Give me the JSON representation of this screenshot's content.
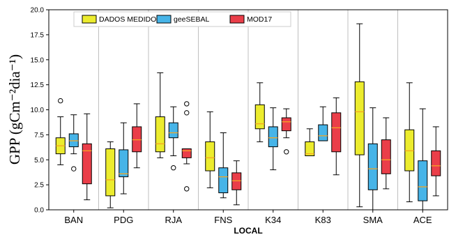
{
  "chart_data": {
    "type": "boxplot",
    "xlabel": "LOCAL",
    "ylabel": "GPP (gCm⁻²dia⁻¹)",
    "ylim": [
      0,
      20
    ],
    "yticks": [
      "0.0",
      "2.5",
      "5.0",
      "7.5",
      "10.0",
      "12.5",
      "15.0",
      "17.5",
      "20.0"
    ],
    "ytick_values": [
      0,
      2.5,
      5,
      7.5,
      10,
      12.5,
      15,
      17.5,
      20
    ],
    "categories": [
      "BAN",
      "PDG",
      "RJA",
      "FNS",
      "K34",
      "K83",
      "SMA",
      "ACE"
    ],
    "legend_position": "top-left",
    "grid": false,
    "series": [
      {
        "name": "DADOS MEDIDOS",
        "color": "#ecec2e",
        "boxes": [
          {
            "whislo": 4.5,
            "q1": 5.6,
            "med": 6.4,
            "q3": 7.2,
            "whishi": 9.3,
            "fliers": [
              10.9
            ]
          },
          {
            "whislo": 0.2,
            "q1": 1.4,
            "med": 3.0,
            "q3": 6.1,
            "whishi": 6.8,
            "fliers": []
          },
          {
            "whislo": 5.2,
            "q1": 5.8,
            "med": 6.6,
            "q3": 9.3,
            "whishi": 13.7,
            "fliers": []
          },
          {
            "whislo": 2.2,
            "q1": 3.9,
            "med": 5.2,
            "q3": 6.8,
            "whishi": 9.8,
            "fliers": []
          },
          {
            "whislo": 6.8,
            "q1": 8.1,
            "med": 8.6,
            "q3": 10.5,
            "whishi": 12.7,
            "fliers": []
          },
          {
            "whislo": 5.4,
            "q1": 5.4,
            "med": 5.6,
            "q3": 6.8,
            "whishi": 8.1,
            "fliers": []
          },
          {
            "whislo": 0.3,
            "q1": 5.5,
            "med": 9.8,
            "q3": 12.8,
            "whishi": 18.6,
            "fliers": []
          },
          {
            "whislo": 0.8,
            "q1": 3.9,
            "med": 5.9,
            "q3": 8.0,
            "whishi": 12.7,
            "fliers": []
          }
        ]
      },
      {
        "name": "geeSEBAL",
        "color": "#46b4e8",
        "boxes": [
          {
            "whislo": 5.6,
            "q1": 6.3,
            "med": 6.9,
            "q3": 7.6,
            "whishi": 9.5,
            "fliers": [
              4.1
            ]
          },
          {
            "whislo": 1.6,
            "q1": 3.3,
            "med": 3.6,
            "q3": 6.0,
            "whishi": 8.7,
            "fliers": []
          },
          {
            "whislo": 5.4,
            "q1": 7.2,
            "med": 7.7,
            "q3": 8.7,
            "whishi": 10.3,
            "fliers": [
              4.2
            ]
          },
          {
            "whislo": 1.2,
            "q1": 1.7,
            "med": 3.3,
            "q3": 4.2,
            "whishi": 7.7,
            "fliers": []
          },
          {
            "whislo": 4.0,
            "q1": 6.3,
            "med": 7.2,
            "q3": 8.3,
            "whishi": 10.2,
            "fliers": []
          },
          {
            "whislo": 6.9,
            "q1": 6.9,
            "med": 7.4,
            "q3": 8.5,
            "whishi": 10.3,
            "fliers": []
          },
          {
            "whislo": 0.0,
            "q1": 2.0,
            "med": 4.1,
            "q3": 6.6,
            "whishi": 10.2,
            "fliers": []
          },
          {
            "whislo": 0.0,
            "q1": 0.9,
            "med": 2.3,
            "q3": 4.9,
            "whishi": 10.1,
            "fliers": []
          }
        ]
      },
      {
        "name": "MOD17",
        "color": "#ea3e49",
        "boxes": [
          {
            "whislo": 1.0,
            "q1": 2.6,
            "med": 5.9,
            "q3": 6.6,
            "whishi": 9.6,
            "fliers": []
          },
          {
            "whislo": 4.2,
            "q1": 5.8,
            "med": 7.0,
            "q3": 8.3,
            "whishi": 10.6,
            "fliers": []
          },
          {
            "whislo": 4.6,
            "q1": 5.2,
            "med": 5.9,
            "q3": 6.1,
            "whishi": 6.1,
            "fliers": [
              10.6,
              9.7,
              2.1
            ]
          },
          {
            "whislo": 0.5,
            "q1": 2.0,
            "med": 2.9,
            "q3": 3.7,
            "whishi": 4.9,
            "fliers": []
          },
          {
            "whislo": 7.2,
            "q1": 7.9,
            "med": 8.8,
            "q3": 9.2,
            "whishi": 10.1,
            "fliers": [
              5.8
            ]
          },
          {
            "whislo": 3.5,
            "q1": 5.8,
            "med": 8.2,
            "q3": 9.7,
            "whishi": 11.2,
            "fliers": []
          },
          {
            "whislo": 2.1,
            "q1": 3.6,
            "med": 5.0,
            "q3": 7.0,
            "whishi": 9.2,
            "fliers": []
          },
          {
            "whislo": 1.4,
            "q1": 3.4,
            "med": 4.4,
            "q3": 5.9,
            "whishi": 8.3,
            "fliers": []
          }
        ]
      }
    ]
  }
}
